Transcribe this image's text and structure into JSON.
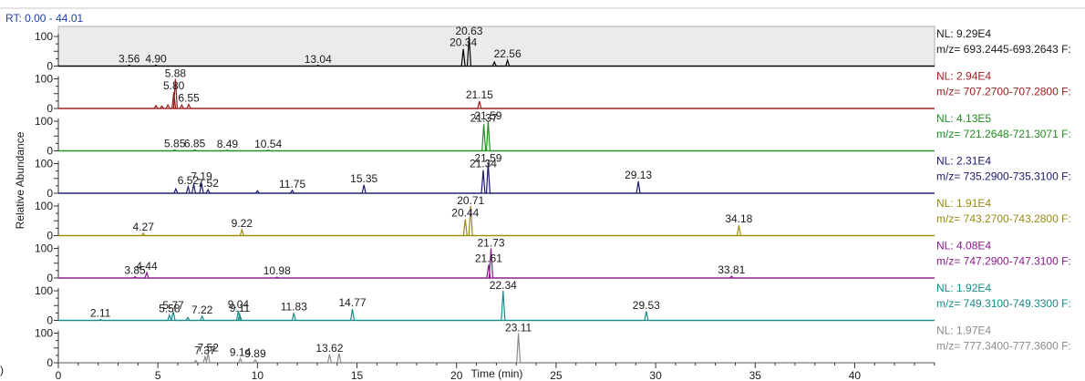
{
  "chart_data": {
    "type": "line",
    "rt_range_label": "RT: 0.00 - 44.01",
    "xlabel": "Time (min)",
    "ylabel": "Relative Abundance",
    "xlim": [
      0,
      44.01
    ],
    "x_ticks": [
      0,
      5,
      10,
      15,
      20,
      25,
      30,
      35,
      40
    ],
    "y_ticks": [
      0,
      100
    ],
    "panel_letter": ")",
    "series": [
      {
        "nl": "NL: 9.29E4",
        "mz": "m/z= 693.2445-693.2643 F:",
        "color": "#000000",
        "background": "#ebebeb",
        "peaks": [
          {
            "rt": 3.56,
            "h": 3,
            "label": "3.56"
          },
          {
            "rt": 4.9,
            "h": 3,
            "label": "4.90"
          },
          {
            "rt": 13.04,
            "h": 2,
            "label": "13.04"
          },
          {
            "rt": 20.34,
            "h": 58,
            "label": "20.34"
          },
          {
            "rt": 20.63,
            "h": 100,
            "label": "20.63"
          },
          {
            "rt": 22.56,
            "h": 20,
            "label": "22.56"
          },
          {
            "rt": 21.9,
            "h": 14,
            "label": ""
          }
        ]
      },
      {
        "nl": "NL: 2.94E4",
        "mz": "m/z= 707.2700-707.2800 F:",
        "color": "#9b1c1c",
        "background": "#ffffff",
        "peaks": [
          {
            "rt": 4.9,
            "h": 10,
            "label": ""
          },
          {
            "rt": 5.2,
            "h": 8,
            "label": ""
          },
          {
            "rt": 5.5,
            "h": 12,
            "label": ""
          },
          {
            "rt": 5.8,
            "h": 55,
            "label": "5.80"
          },
          {
            "rt": 5.88,
            "h": 100,
            "label": "5.88"
          },
          {
            "rt": 6.2,
            "h": 12,
            "label": ""
          },
          {
            "rt": 6.55,
            "h": 14,
            "label": "6.55"
          },
          {
            "rt": 21.15,
            "h": 24,
            "label": "21.15"
          }
        ]
      },
      {
        "nl": "NL: 4.13E5",
        "mz": "m/z= 721.2648-721.3071 F:",
        "color": "#1f8f1f",
        "background": "#ffffff",
        "peaks": [
          {
            "rt": 5.85,
            "h": 3,
            "label": "5.85"
          },
          {
            "rt": 6.85,
            "h": 3,
            "label": "6.85"
          },
          {
            "rt": 8.49,
            "h": 2,
            "label": "8.49"
          },
          {
            "rt": 10.54,
            "h": 2,
            "label": "10.54"
          },
          {
            "rt": 21.37,
            "h": 90,
            "label": "21.37"
          },
          {
            "rt": 21.59,
            "h": 100,
            "label": "21.59"
          }
        ]
      },
      {
        "nl": "NL: 2.31E4",
        "mz": "m/z= 735.2900-735.3100 F:",
        "color": "#1a1a6e",
        "background": "#ffffff",
        "peaks": [
          {
            "rt": 5.9,
            "h": 15,
            "label": ""
          },
          {
            "rt": 6.52,
            "h": 22,
            "label": "6.52"
          },
          {
            "rt": 6.8,
            "h": 30,
            "label": ""
          },
          {
            "rt": 7.19,
            "h": 35,
            "label": "7.19"
          },
          {
            "rt": 7.52,
            "h": 12,
            "label": "7.52"
          },
          {
            "rt": 10.0,
            "h": 8,
            "label": ""
          },
          {
            "rt": 11.75,
            "h": 10,
            "label": "11.75"
          },
          {
            "rt": 15.35,
            "h": 28,
            "label": "15.35"
          },
          {
            "rt": 21.34,
            "h": 78,
            "label": "21.34"
          },
          {
            "rt": 21.59,
            "h": 100,
            "label": "21.59"
          },
          {
            "rt": 29.13,
            "h": 40,
            "label": "29.13"
          }
        ]
      },
      {
        "nl": "NL: 1.91E4",
        "mz": "m/z= 743.2700-743.2800 F:",
        "color": "#9a8a10",
        "background": "#ffffff",
        "peaks": [
          {
            "rt": 4.27,
            "h": 8,
            "label": "4.27"
          },
          {
            "rt": 9.22,
            "h": 20,
            "label": "9.22"
          },
          {
            "rt": 20.44,
            "h": 55,
            "label": "20.44"
          },
          {
            "rt": 20.71,
            "h": 100,
            "label": "20.71"
          },
          {
            "rt": 34.18,
            "h": 35,
            "label": "34.18"
          }
        ]
      },
      {
        "nl": "NL: 4.08E4",
        "mz": "m/z= 747.2900-747.3100 F:",
        "color": "#8a1a8a",
        "background": "#ffffff",
        "peaks": [
          {
            "rt": 3.85,
            "h": 4,
            "label": "3.85"
          },
          {
            "rt": 4.44,
            "h": 18,
            "label": "4.44"
          },
          {
            "rt": 10.98,
            "h": 3,
            "label": "10.98"
          },
          {
            "rt": 21.61,
            "h": 45,
            "label": "21.61"
          },
          {
            "rt": 21.73,
            "h": 100,
            "label": "21.73"
          },
          {
            "rt": 33.81,
            "h": 6,
            "label": "33.81"
          }
        ]
      },
      {
        "nl": "NL: 1.92E4",
        "mz": "m/z= 749.3100-749.3300 F:",
        "color": "#1a8a8a",
        "background": "#ffffff",
        "peaks": [
          {
            "rt": 2.11,
            "h": 3,
            "label": "2.11"
          },
          {
            "rt": 5.58,
            "h": 18,
            "label": "5.58"
          },
          {
            "rt": 5.77,
            "h": 30,
            "label": "5.77"
          },
          {
            "rt": 6.5,
            "h": 10,
            "label": ""
          },
          {
            "rt": 7.22,
            "h": 14,
            "label": "7.22"
          },
          {
            "rt": 9.04,
            "h": 32,
            "label": "9.04"
          },
          {
            "rt": 9.11,
            "h": 20,
            "label": "9.11"
          },
          {
            "rt": 11.83,
            "h": 25,
            "label": "11.83"
          },
          {
            "rt": 14.77,
            "h": 38,
            "label": "14.77"
          },
          {
            "rt": 22.34,
            "h": 100,
            "label": "22.34"
          },
          {
            "rt": 29.53,
            "h": 30,
            "label": "29.53"
          }
        ]
      },
      {
        "nl": "NL: 1.97E4",
        "mz": "m/z= 777.3400-777.3600 F:",
        "color": "#8a8a8a",
        "background": "#ffffff",
        "peaks": [
          {
            "rt": 6.9,
            "h": 8,
            "label": ""
          },
          {
            "rt": 7.37,
            "h": 20,
            "label": "7.37"
          },
          {
            "rt": 7.52,
            "h": 30,
            "label": "7.52"
          },
          {
            "rt": 9.14,
            "h": 14,
            "label": "9.14"
          },
          {
            "rt": 9.89,
            "h": 10,
            "label": "9.89"
          },
          {
            "rt": 13.62,
            "h": 28,
            "label": "13.62"
          },
          {
            "rt": 14.1,
            "h": 32,
            "label": ""
          },
          {
            "rt": 23.11,
            "h": 100,
            "label": "23.11"
          }
        ]
      }
    ]
  }
}
